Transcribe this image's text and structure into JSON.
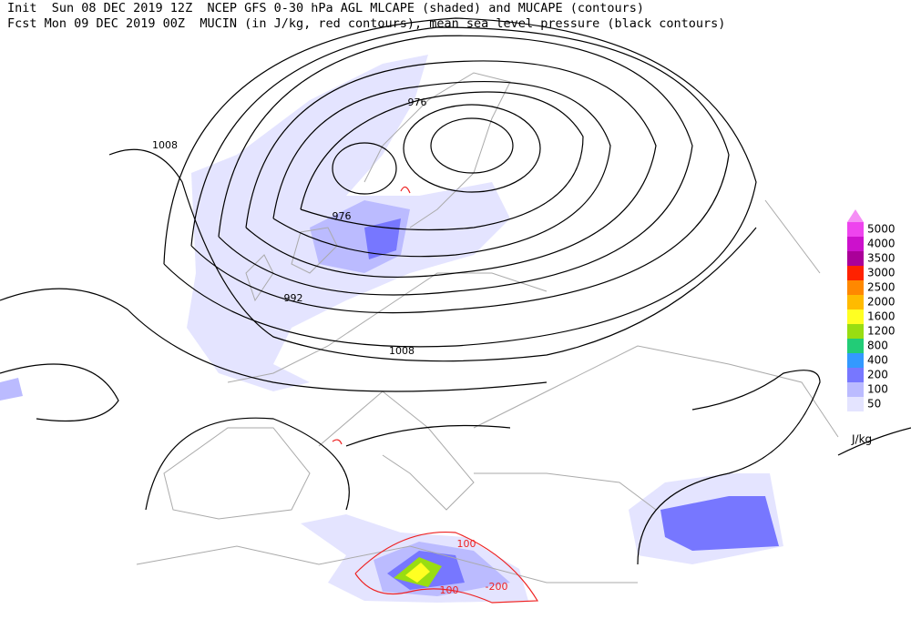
{
  "header": {
    "line1": "Init  Sun 08 DEC 2019 12Z  NCEP GFS 0-30 hPa AGL MLCAPE (shaded) and MUCAPE (contours)",
    "line2": "Fcst Mon 09 DEC 2019 00Z  MUCIN (in J/kg, red contours), mean sea level pressure (black contours)"
  },
  "contour_labels": [
    "976",
    "1008",
    "976",
    "992",
    "1008",
    "100",
    "-200",
    "100"
  ],
  "colorbar": {
    "levels": [
      {
        "label": "5000",
        "color": "#ee44ee"
      },
      {
        "label": "4000",
        "color": "#cc11cc"
      },
      {
        "label": "3500",
        "color": "#aa0099"
      },
      {
        "label": "3000",
        "color": "#ff2200"
      },
      {
        "label": "2500",
        "color": "#ff8800"
      },
      {
        "label": "2000",
        "color": "#ffbb00"
      },
      {
        "label": "1600",
        "color": "#ffff22"
      },
      {
        "label": "1200",
        "color": "#99dd11"
      },
      {
        "label": "800",
        "color": "#22cc77"
      },
      {
        "label": "400",
        "color": "#3399ff"
      },
      {
        "label": "200",
        "color": "#7777ff"
      },
      {
        "label": "100",
        "color": "#bbbbff"
      },
      {
        "label": "50",
        "color": "#e4e4ff"
      }
    ],
    "unit": "J/kg"
  }
}
